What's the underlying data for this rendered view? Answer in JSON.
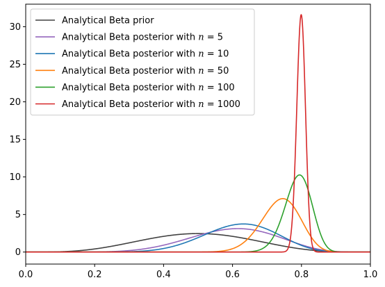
{
  "chart_data": {
    "type": "line",
    "title": "",
    "xlabel": "",
    "ylabel": "",
    "xlim": [
      0,
      1
    ],
    "ylim": [
      -1.6,
      33
    ],
    "x_ticks": [
      0.0,
      0.2,
      0.4,
      0.6,
      0.8,
      1.0
    ],
    "x_tick_labels": [
      "0.0",
      "0.2",
      "0.4",
      "0.6",
      "0.8",
      "1.0"
    ],
    "y_ticks": [
      0,
      5,
      10,
      15,
      20,
      25,
      30
    ],
    "y_tick_labels": [
      "0",
      "5",
      "10",
      "15",
      "20",
      "25",
      "30"
    ],
    "grid": false,
    "legend_position": "upper-left",
    "series": [
      {
        "name": "Analytical Beta prior",
        "color": "#404040",
        "alpha": 5,
        "beta": 5,
        "peak": [
          0.5,
          2.46
        ]
      },
      {
        "name": "Analytical Beta posterior with n = 5",
        "color": "#9467bd",
        "alpha": 9,
        "beta": 6,
        "peak": [
          0.62,
          3.0
        ]
      },
      {
        "name": "Analytical Beta posterior with n = 10",
        "color": "#1f77b4",
        "alpha": 13,
        "beta": 8,
        "peak": [
          0.61,
          3.6
        ]
      },
      {
        "name": "Analytical Beta posterior with n = 50",
        "color": "#ff7f0e",
        "alpha": 45,
        "beta": 16,
        "peak": [
          0.74,
          7.0
        ]
      },
      {
        "name": "Analytical Beta posterior with n = 100",
        "color": "#2ca02c",
        "alpha": 86,
        "beta": 23,
        "peak": [
          0.79,
          10.2
        ]
      },
      {
        "name": "Analytical Beta posterior with n = 1000",
        "color": "#d62728",
        "alpha": 805,
        "beta": 203,
        "peak": [
          0.8,
          31.4
        ]
      }
    ]
  }
}
